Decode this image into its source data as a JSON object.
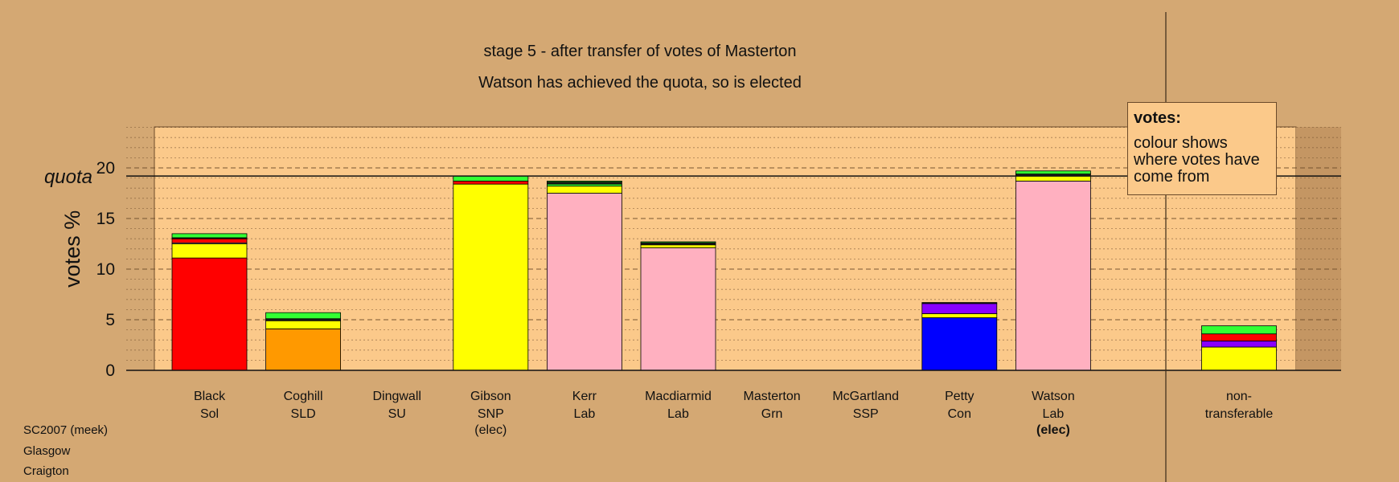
{
  "title": "stage 5 - after transfer of votes of Masterton",
  "subtitle": "Watson has achieved the quota, so is elected",
  "footer": [
    "SC2007 (meek)",
    "Glasgow",
    "Craigton"
  ],
  "legend": {
    "heading": "votes:",
    "body": "colour shows where votes have come from"
  },
  "colors": {
    "background": "#d4a873",
    "panel": "#fbc98a",
    "Sol": "#ff0000",
    "SLD": "#ff9900",
    "SNP": "#ffff00",
    "Lab": "#ffb0c0",
    "Con": "#0000ff",
    "Grn": "#33ff33",
    "SSP": "#8800ff",
    "other": "#1a1a1a"
  },
  "chart_data": {
    "type": "bar",
    "stacked": true,
    "ylabel": "votes %",
    "ylim": [
      0,
      24
    ],
    "yticks": [
      0,
      5,
      10,
      15,
      20
    ],
    "quota": 19.2,
    "quota_label": "quota",
    "grid": true,
    "legend_placement": "top-right",
    "categories": [
      {
        "name": "Black",
        "party": "Sol",
        "note": ""
      },
      {
        "name": "Coghill",
        "party": "SLD",
        "note": ""
      },
      {
        "name": "Dingwall",
        "party": "SU",
        "note": ""
      },
      {
        "name": "Gibson",
        "party": "SNP",
        "note": "(elec)"
      },
      {
        "name": "Kerr",
        "party": "Lab",
        "note": ""
      },
      {
        "name": "Macdiarmid",
        "party": "Lab",
        "note": ""
      },
      {
        "name": "Masterton",
        "party": "Grn",
        "note": ""
      },
      {
        "name": "McGartland",
        "party": "SSP",
        "note": ""
      },
      {
        "name": "Petty",
        "party": "Con",
        "note": ""
      },
      {
        "name": "Watson",
        "party": "Lab",
        "note": "(elec)"
      },
      {
        "name": "non-",
        "party": "transferable",
        "note": ""
      }
    ],
    "stacks": [
      [
        {
          "c": "Sol",
          "v": 11.1
        },
        {
          "c": "SNP",
          "v": 1.4
        },
        {
          "c": "Lab",
          "v": 0.1
        },
        {
          "c": "Sol",
          "v": 0.4
        },
        {
          "c": "other",
          "v": 0.1
        },
        {
          "c": "Grn",
          "v": 0.4
        }
      ],
      [
        {
          "c": "SLD",
          "v": 4.1
        },
        {
          "c": "SNP",
          "v": 0.8
        },
        {
          "c": "other",
          "v": 0.2
        },
        {
          "c": "Grn",
          "v": 0.6
        }
      ],
      [],
      [
        {
          "c": "SNP",
          "v": 18.4
        },
        {
          "c": "Sol",
          "v": 0.3
        },
        {
          "c": "Grn",
          "v": 0.5
        }
      ],
      [
        {
          "c": "Lab",
          "v": 17.5
        },
        {
          "c": "SNP",
          "v": 0.7
        },
        {
          "c": "Grn",
          "v": 0.2
        },
        {
          "c": "other",
          "v": 0.2
        },
        {
          "c": "Grn",
          "v": 0.1
        }
      ],
      [
        {
          "c": "Lab",
          "v": 12.1
        },
        {
          "c": "SNP",
          "v": 0.3
        },
        {
          "c": "other",
          "v": 0.2
        },
        {
          "c": "Grn",
          "v": 0.1
        }
      ],
      [],
      [],
      [
        {
          "c": "Con",
          "v": 5.2
        },
        {
          "c": "SNP",
          "v": 0.4
        },
        {
          "c": "SSP",
          "v": 1.0
        },
        {
          "c": "other",
          "v": 0.1
        }
      ],
      [
        {
          "c": "Lab",
          "v": 18.7
        },
        {
          "c": "SNP",
          "v": 0.5
        },
        {
          "c": "other",
          "v": 0.2
        },
        {
          "c": "Grn",
          "v": 0.3
        }
      ],
      [
        {
          "c": "SNP",
          "v": 2.3
        },
        {
          "c": "SSP",
          "v": 0.6
        },
        {
          "c": "Sol",
          "v": 0.7
        },
        {
          "c": "Grn",
          "v": 0.8
        }
      ]
    ]
  }
}
